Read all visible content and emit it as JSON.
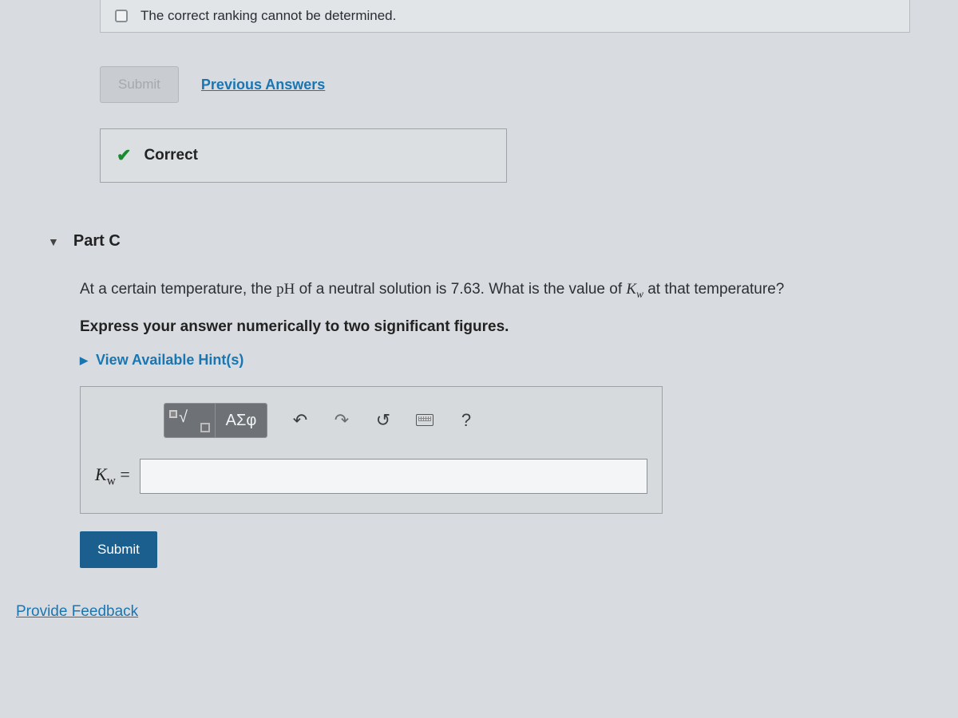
{
  "colors": {
    "background": "#d8dce0",
    "link": "#1976b3",
    "correct_green": "#1a8a2f",
    "primary_button": "#1b5f8f",
    "border": "#9ea3a8"
  },
  "partB": {
    "option_text": "The correct ranking cannot be determined.",
    "submit_label": "Submit",
    "previous_answers_label": "Previous Answers",
    "correct_label": "Correct"
  },
  "partC": {
    "header": "Part C",
    "question_prefix": "At a certain temperature, the ",
    "question_ph": "pH",
    "question_mid": " of a neutral solution is 7.63. What is the value of ",
    "question_kw": "K",
    "question_kw_sub": "w",
    "question_suffix": " at that temperature?",
    "instruction": "Express your answer numerically to two significant figures.",
    "hints_label": "View Available Hint(s)",
    "toolbar": {
      "greek_label": "ΑΣφ",
      "help_label": "?"
    },
    "variable_label_base": "K",
    "variable_label_sub": "w",
    "equals": " =",
    "submit_label": "Submit"
  },
  "footer": {
    "feedback_label": "Provide Feedback"
  }
}
